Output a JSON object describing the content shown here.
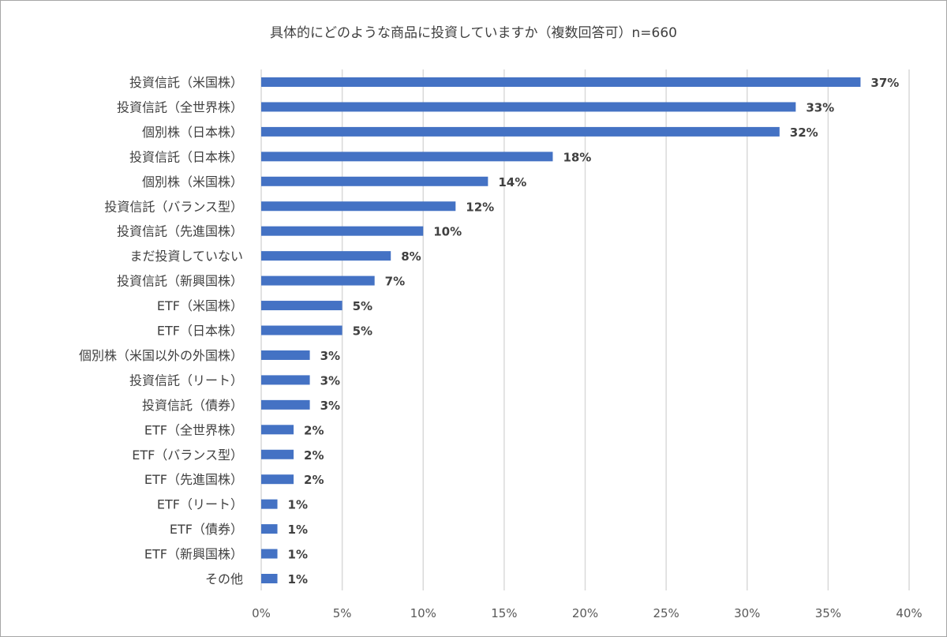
{
  "chart_data": {
    "type": "bar",
    "orientation": "horizontal",
    "title": "具体的にどのような商品に投資していますか（複数回答可）n=660",
    "categories": [
      "投資信託（米国株）",
      "投資信託（全世界株）",
      "個別株（日本株）",
      "投資信託（日本株）",
      "個別株（米国株）",
      "投資信託（バランス型）",
      "投資信託（先進国株）",
      "まだ投資していない",
      "投資信託（新興国株）",
      "ETF（米国株）",
      "ETF（日本株）",
      "個別株（米国以外の外国株）",
      "投資信託（リート）",
      "投資信託（債券）",
      "ETF（全世界株）",
      "ETF（バランス型）",
      "ETF（先進国株）",
      "ETF（リート）",
      "ETF（債券）",
      "ETF（新興国株）",
      "その他"
    ],
    "values": [
      37,
      33,
      32,
      18,
      14,
      12,
      10,
      8,
      7,
      5,
      5,
      3,
      3,
      3,
      2,
      2,
      2,
      1,
      1,
      1,
      1
    ],
    "value_labels": [
      "37%",
      "33%",
      "32%",
      "18%",
      "14%",
      "12%",
      "10%",
      "8%",
      "7%",
      "5%",
      "5%",
      "3%",
      "3%",
      "3%",
      "2%",
      "2%",
      "2%",
      "1%",
      "1%",
      "1%",
      "1%"
    ],
    "xlim": [
      0,
      40
    ],
    "x_ticks": [
      0,
      5,
      10,
      15,
      20,
      25,
      30,
      35,
      40
    ],
    "x_tick_labels": [
      "0%",
      "5%",
      "10%",
      "15%",
      "20%",
      "25%",
      "30%",
      "35%",
      "40%"
    ],
    "grid": true,
    "bar_color": "#4472c4",
    "gridline_color": "#d9d9d9"
  }
}
